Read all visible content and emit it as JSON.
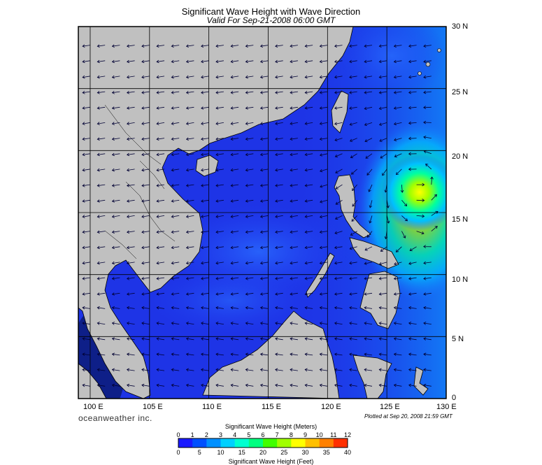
{
  "title": "Significant Wave Height with Wave Direction",
  "subtitle": "Valid For Sep-21-2008 06:00 GMT",
  "lat_labels": [
    "30 N",
    "25 N",
    "20 N",
    "15 N",
    "10 N",
    "5 N",
    "0"
  ],
  "lon_labels": [
    "100 E",
    "105 E",
    "110 E",
    "115 E",
    "120 E",
    "125 E",
    "130 E"
  ],
  "branding": "oceanweather inc.",
  "plotted_text": "Plotted at Sep 20, 2008 21:59 GMT",
  "colorbar": {
    "title_meters": "Significant Wave Height (Meters)",
    "title_feet": "Significant Wave Height (Feet)",
    "meter_ticks": [
      "0",
      "1",
      "2",
      "3",
      "4",
      "5",
      "6",
      "7",
      "8",
      "9",
      "10",
      "11",
      "12"
    ],
    "feet_ticks": [
      "0",
      "5",
      "10",
      "15",
      "20",
      "25",
      "30",
      "35",
      "40"
    ],
    "colors": [
      "#1a1aff",
      "#0050ff",
      "#0090ff",
      "#00d0ff",
      "#00ffd0",
      "#00ff80",
      "#40ff00",
      "#a0ff00",
      "#ffff00",
      "#ffc000",
      "#ff8000",
      "#ff3000"
    ]
  },
  "colors": {
    "land": "#c0c0c0",
    "sea_low": "#1e2bdb",
    "sea_mid": "#1e6aff",
    "grid": "#000000"
  },
  "storm_center": {
    "lat": 17.5,
    "lon": 127.5,
    "peak_m": 8
  }
}
